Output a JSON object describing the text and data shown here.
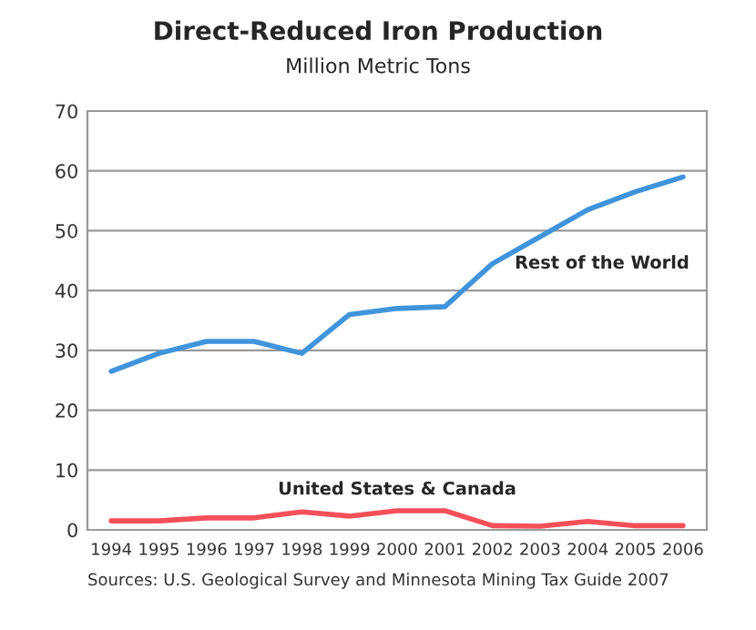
{
  "chart_data": {
    "type": "line",
    "title": "Direct-Reduced Iron Production",
    "subtitle": "Million Metric Tons",
    "categories": [
      "1994",
      "1995",
      "1996",
      "1997",
      "1998",
      "1999",
      "2000",
      "2001",
      "2002",
      "2003",
      "2004",
      "2005",
      "2006"
    ],
    "series": [
      {
        "name": "Rest of the World",
        "color": "#3f94dc",
        "values": [
          26.5,
          29.5,
          31.5,
          31.5,
          29.5,
          36,
          37,
          37.3,
          44.5,
          49,
          53.5,
          56.5,
          59
        ]
      },
      {
        "name": "United States & Canada",
        "color": "#f5505a",
        "values": [
          1.5,
          1.5,
          2,
          2,
          3,
          2.3,
          3.2,
          3.2,
          0.7,
          0.6,
          1.4,
          0.7,
          0.7
        ]
      }
    ],
    "ylim": [
      0,
      70
    ],
    "yticks": [
      0,
      10,
      20,
      30,
      40,
      50,
      60,
      70
    ],
    "grid": "y",
    "legend": false,
    "marker": "none",
    "line_style": "solid",
    "annotations": [
      "Sources: U.S. Geological Survey and Minnesota Mining Tax Guide 2007"
    ]
  }
}
